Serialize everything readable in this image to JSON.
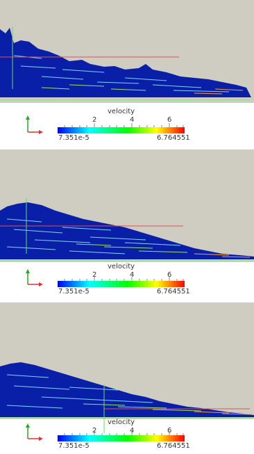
{
  "colorbar": {
    "title": "velocity",
    "ticks": [
      "2",
      "4",
      "6"
    ],
    "min_label": "7.351e-5",
    "max_label": "6.764551",
    "colors": [
      "#0000ff",
      "#00ffff",
      "#00ff00",
      "#ffff00",
      "#ff0000"
    ]
  },
  "background_color": "#cfccc2",
  "fluid_color": "#0a1fa8",
  "panels": [
    {
      "name": "snapshot-1"
    },
    {
      "name": "snapshot-2"
    },
    {
      "name": "snapshot-3"
    }
  ]
}
